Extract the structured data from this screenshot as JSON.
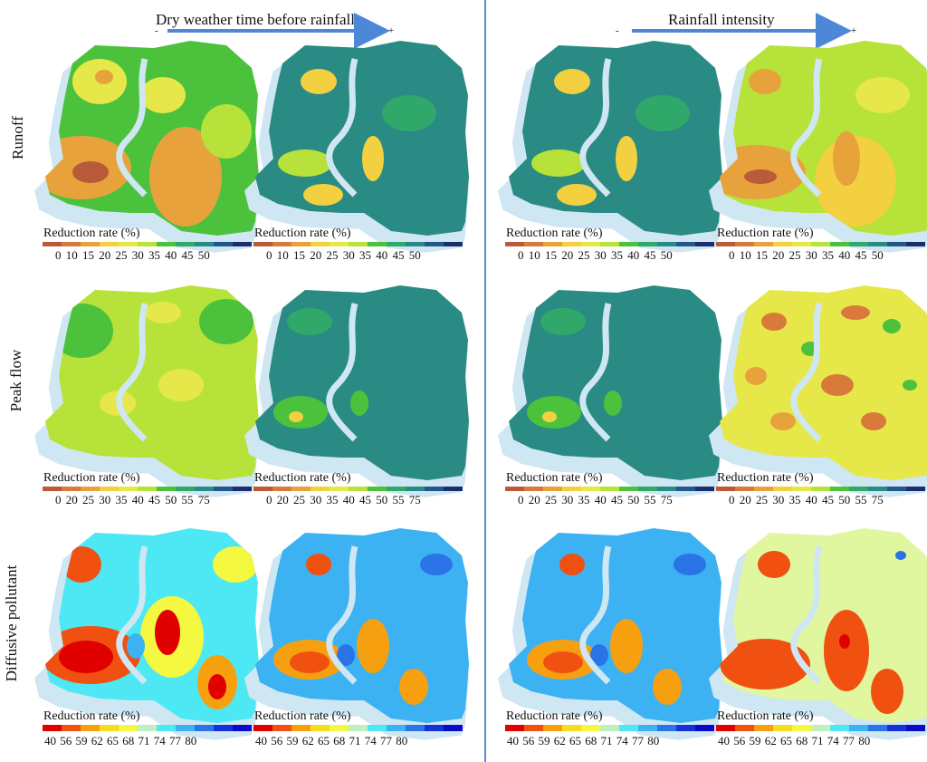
{
  "headers": {
    "left": "Dry weather time before rainfall",
    "right": "Rainfall intensity",
    "minus": "-",
    "plus": "+"
  },
  "rows": {
    "runoff": "Runoff",
    "peak": "Peak flow",
    "pollutant": "Diffusive pollutant"
  },
  "legend": {
    "title": "Reduction rate (%)",
    "runoff_ticks": "0 10  15  20  25  30  35  40  45  50",
    "peak_ticks": "0 20  25  30  35  40  45  50  55  75",
    "pollutant_ticks": "40  56  59  62  65  68  71  74  77  80"
  },
  "colors": {
    "scale_runoff_peak": [
      "#b95a3a",
      "#d97a3a",
      "#e8a23c",
      "#f2d040",
      "#e6e84a",
      "#b6e23a",
      "#4cc23c",
      "#2fa86a",
      "#2a8a84",
      "#22578e",
      "#1c2d6e"
    ],
    "scale_pollutant": [
      "#e00000",
      "#f05010",
      "#f6a010",
      "#f6dc20",
      "#f4f840",
      "#bff0c0",
      "#4ee8f4",
      "#3cb2f2",
      "#2a74e8",
      "#1432d6",
      "#0a0ac8"
    ],
    "divider": "#5b8fd1",
    "arrow": "#4f87d8",
    "river": "#cfe6f3"
  }
}
